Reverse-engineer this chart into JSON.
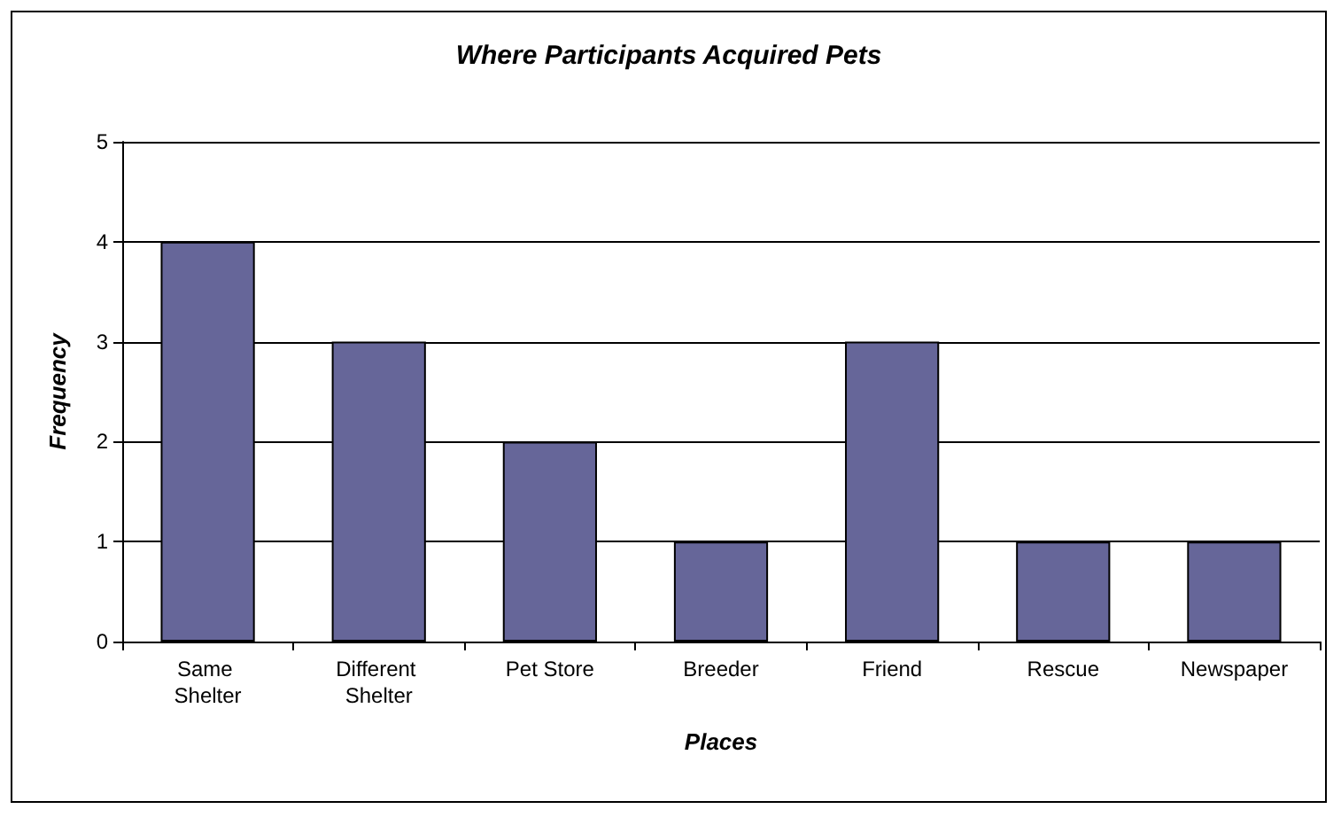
{
  "chart_data": {
    "type": "bar",
    "title": "Where Participants Acquired Pets",
    "xlabel": "Places",
    "ylabel": "Frequency",
    "categories": [
      "Same Shelter",
      "Different Shelter",
      "Pet Store",
      "Breeder",
      "Friend",
      "Rescue",
      "Newspaper"
    ],
    "values": [
      4,
      3,
      2,
      1,
      3,
      1,
      1
    ],
    "color": "#666699",
    "ylim": [
      0,
      5
    ],
    "yticks": [
      0,
      1,
      2,
      3,
      4,
      5
    ],
    "grid": "y"
  }
}
